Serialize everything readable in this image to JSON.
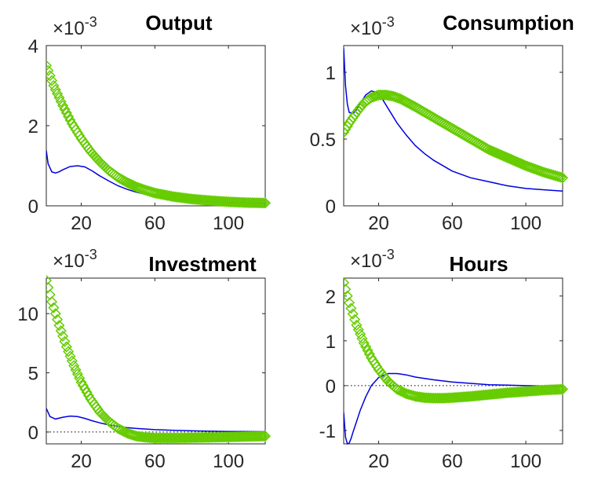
{
  "chart_data": [
    {
      "type": "line",
      "title": "Output",
      "exponent_label": "×10",
      "exponent_power": "-3",
      "xlim": [
        1,
        120
      ],
      "ylim": [
        0,
        4
      ],
      "xticks": [
        20,
        60,
        100
      ],
      "yticks": [
        0,
        2,
        4
      ],
      "zero_line": false,
      "series": [
        {
          "color": "#0000e0",
          "marker": "none",
          "x": [
            1,
            2,
            4,
            6,
            8,
            10,
            14,
            18,
            22,
            26,
            30,
            35,
            40,
            45,
            50,
            60,
            70,
            80,
            90,
            100,
            110,
            120
          ],
          "y": [
            1.38,
            1.05,
            0.85,
            0.82,
            0.85,
            0.9,
            0.98,
            1.0,
            0.97,
            0.87,
            0.75,
            0.62,
            0.5,
            0.41,
            0.34,
            0.24,
            0.17,
            0.13,
            0.1,
            0.08,
            0.07,
            0.06
          ]
        },
        {
          "color": "#66cc00",
          "marker": "diamond",
          "x": [
            1,
            5,
            10,
            15,
            20,
            25,
            30,
            35,
            40,
            45,
            50,
            55,
            60,
            70,
            80,
            90,
            100,
            110,
            120
          ],
          "y": [
            3.5,
            3.0,
            2.5,
            2.05,
            1.68,
            1.36,
            1.1,
            0.88,
            0.71,
            0.58,
            0.47,
            0.39,
            0.32,
            0.23,
            0.17,
            0.13,
            0.1,
            0.08,
            0.07
          ]
        }
      ]
    },
    {
      "type": "line",
      "title": "Consumption",
      "exponent_label": "×10",
      "exponent_power": "-3",
      "xlim": [
        1,
        120
      ],
      "ylim": [
        0,
        1.2
      ],
      "xticks": [
        20,
        60,
        100
      ],
      "yticks": [
        0,
        0.5,
        1
      ],
      "zero_line": false,
      "series": [
        {
          "color": "#0000e0",
          "marker": "none",
          "x": [
            1,
            2,
            3,
            4,
            6,
            8,
            10,
            13,
            16,
            19,
            22,
            26,
            30,
            35,
            40,
            45,
            50,
            60,
            70,
            80,
            90,
            100,
            110,
            120
          ],
          "y": [
            1.18,
            0.9,
            0.76,
            0.7,
            0.69,
            0.72,
            0.77,
            0.83,
            0.86,
            0.85,
            0.8,
            0.71,
            0.62,
            0.53,
            0.45,
            0.39,
            0.34,
            0.26,
            0.21,
            0.18,
            0.15,
            0.13,
            0.12,
            0.11
          ]
        },
        {
          "color": "#66cc00",
          "marker": "diamond",
          "x": [
            1,
            4,
            8,
            12,
            16,
            20,
            24,
            28,
            32,
            36,
            40,
            45,
            50,
            55,
            60,
            70,
            80,
            90,
            100,
            110,
            120
          ],
          "y": [
            0.55,
            0.62,
            0.7,
            0.77,
            0.81,
            0.83,
            0.83,
            0.82,
            0.8,
            0.77,
            0.74,
            0.7,
            0.66,
            0.62,
            0.58,
            0.5,
            0.42,
            0.36,
            0.3,
            0.25,
            0.21
          ]
        }
      ]
    },
    {
      "type": "line",
      "title": "Investment",
      "exponent_label": "×10",
      "exponent_power": "-3",
      "xlim": [
        1,
        120
      ],
      "ylim": [
        -1,
        13
      ],
      "xticks": [
        20,
        60,
        100
      ],
      "yticks": [
        0,
        5,
        10
      ],
      "zero_line": true,
      "series": [
        {
          "color": "#0000e0",
          "marker": "none",
          "x": [
            1,
            3,
            6,
            10,
            14,
            18,
            22,
            26,
            30,
            35,
            40,
            45,
            50,
            60,
            70,
            80,
            90,
            100,
            110,
            120
          ],
          "y": [
            2.0,
            1.3,
            1.1,
            1.25,
            1.35,
            1.3,
            1.15,
            0.95,
            0.78,
            0.6,
            0.47,
            0.37,
            0.3,
            0.2,
            0.14,
            0.1,
            0.07,
            0.05,
            0.04,
            0.03
          ]
        },
        {
          "color": "#66cc00",
          "marker": "diamond",
          "x": [
            1,
            4,
            8,
            12,
            16,
            20,
            25,
            30,
            35,
            40,
            45,
            50,
            55,
            60,
            70,
            80,
            90,
            100,
            110,
            120
          ],
          "y": [
            12.8,
            11.0,
            9.0,
            7.2,
            5.6,
            4.2,
            2.8,
            1.7,
            0.9,
            0.3,
            -0.1,
            -0.35,
            -0.45,
            -0.5,
            -0.5,
            -0.48,
            -0.45,
            -0.42,
            -0.38,
            -0.35
          ]
        }
      ]
    },
    {
      "type": "line",
      "title": "Hours",
      "exponent_label": "×10",
      "exponent_power": "-3",
      "xlim": [
        1,
        120
      ],
      "ylim": [
        -1.3,
        2.4
      ],
      "xticks": [
        20,
        60,
        100
      ],
      "yticks": [
        -1,
        0,
        1,
        2
      ],
      "zero_line": true,
      "series": [
        {
          "color": "#0000e0",
          "marker": "none",
          "x": [
            1,
            2,
            3,
            4,
            5,
            6,
            8,
            10,
            13,
            16,
            20,
            25,
            30,
            35,
            40,
            50,
            60,
            70,
            80,
            90,
            100,
            110,
            120
          ],
          "y": [
            -0.6,
            -1.15,
            -1.3,
            -1.28,
            -1.18,
            -1.05,
            -0.8,
            -0.55,
            -0.25,
            0.0,
            0.18,
            0.27,
            0.27,
            0.24,
            0.19,
            0.13,
            0.08,
            0.05,
            0.02,
            0.01,
            0.0,
            -0.01,
            -0.02
          ]
        },
        {
          "color": "#66cc00",
          "marker": "diamond",
          "x": [
            1,
            4,
            8,
            12,
            16,
            20,
            25,
            30,
            35,
            40,
            45,
            50,
            55,
            60,
            70,
            80,
            90,
            100,
            110,
            120
          ],
          "y": [
            2.3,
            1.85,
            1.35,
            0.95,
            0.62,
            0.36,
            0.1,
            -0.08,
            -0.18,
            -0.24,
            -0.27,
            -0.28,
            -0.28,
            -0.27,
            -0.24,
            -0.2,
            -0.16,
            -0.13,
            -0.1,
            -0.08
          ]
        }
      ]
    }
  ]
}
